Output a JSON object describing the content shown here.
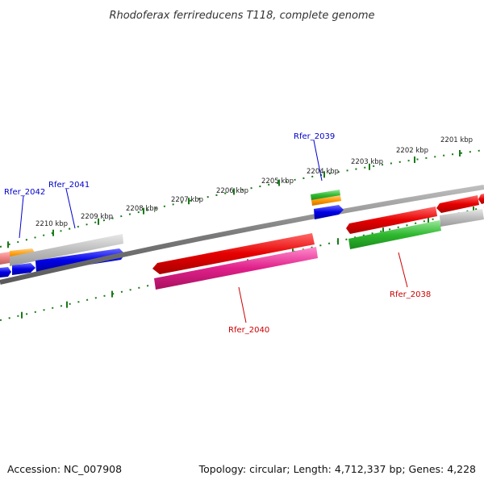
{
  "title": "Rhodoferax ferrireducens T118, complete genome",
  "accession": "Accession: NC_007908",
  "summary": "Topology: circular; Length: 4,712,337 bp; Genes: 4,228",
  "ruler": {
    "ticks": [
      {
        "label": "2210 kbp"
      },
      {
        "label": "2209 kbp"
      },
      {
        "label": "2208 kbp"
      },
      {
        "label": "2207 kbp"
      },
      {
        "label": "2206 kbp"
      },
      {
        "label": "2205 kbp"
      },
      {
        "label": "2204 kbp"
      },
      {
        "label": "2203 kbp"
      },
      {
        "label": "2202 kbp"
      },
      {
        "label": "2201 kbp"
      }
    ]
  },
  "genes": [
    {
      "name": "Rfer_2042",
      "color": "#0000cc"
    },
    {
      "name": "Rfer_2041",
      "color": "#0000cc"
    },
    {
      "name": "Rfer_2039",
      "color": "#0000cc"
    },
    {
      "name": "Rfer_2040",
      "color": "#cc0000"
    },
    {
      "name": "Rfer_2038",
      "color": "#cc0000"
    }
  ],
  "colors": {
    "backbone": "#808080",
    "ruler": "#1a7a1a",
    "red": "#ee1111",
    "blue": "#1111dd",
    "green": "#33bb33",
    "orange": "#ff9900",
    "gray": "#bbbbbb",
    "magenta": "#e0238c",
    "pink": "#ee8080"
  }
}
